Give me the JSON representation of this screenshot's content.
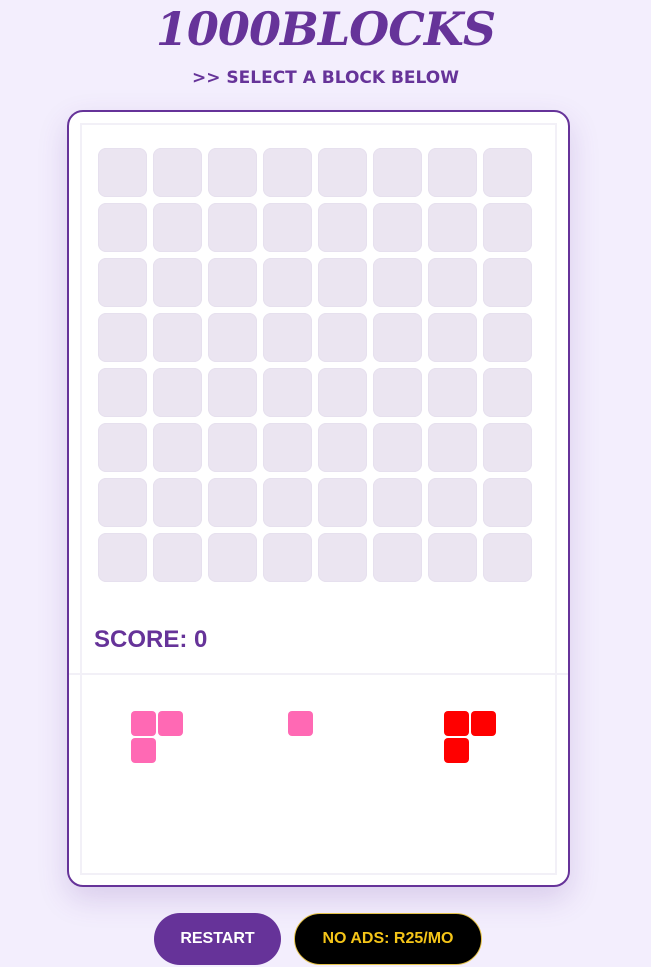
{
  "header": {
    "title": "1000BLOCKS",
    "subtitle": ">> SELECT A BLOCK BELOW"
  },
  "board": {
    "rows": 8,
    "cols": 8,
    "filled": [],
    "empty_color": "#ebe5f1"
  },
  "score": {
    "label": "SCORE: 0",
    "value": 0
  },
  "pieces": [
    {
      "color": "#ff69b4",
      "cells": [
        [
          0,
          0
        ],
        [
          0,
          1
        ],
        [
          1,
          0
        ]
      ]
    },
    {
      "color": "#ff69b4",
      "cells": [
        [
          0,
          0
        ]
      ]
    },
    {
      "color": "#ff0000",
      "cells": [
        [
          0,
          0
        ],
        [
          0,
          1
        ],
        [
          1,
          0
        ]
      ]
    }
  ],
  "buttons": {
    "restart": "RESTART",
    "no_ads": "NO ADS: R25/MO"
  },
  "colors": {
    "accent": "#663399",
    "background": "#f3eefd",
    "gold": "#f5c518"
  }
}
